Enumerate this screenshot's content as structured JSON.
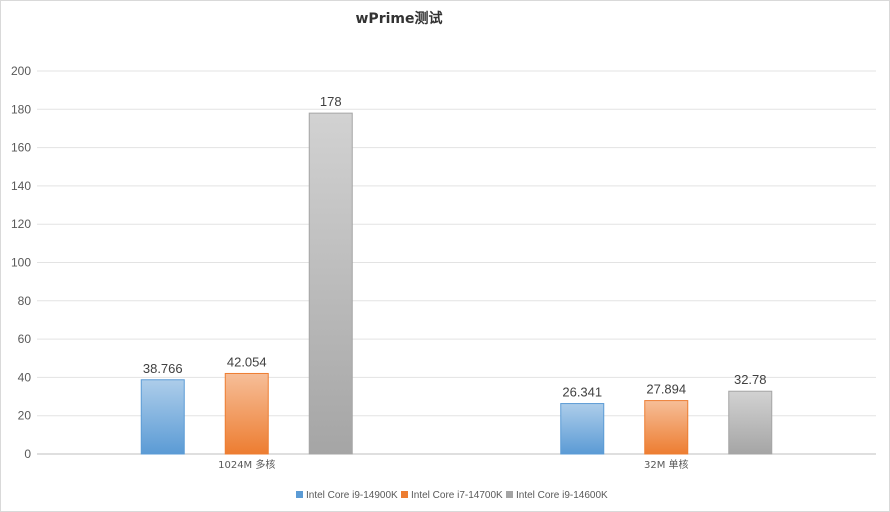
{
  "chart_data": {
    "type": "bar",
    "title": "wPrime测试",
    "xlabel": "",
    "ylabel": "",
    "categories": [
      "1024M 多核",
      "32M 单核"
    ],
    "series": [
      {
        "name": "Intel Core i9-14900K",
        "values": [
          38.766,
          26.341
        ],
        "labels": [
          "38.766",
          "26.341"
        ],
        "color": "#5b9bd5"
      },
      {
        "name": "Intel Core i7-14700K",
        "values": [
          42.054,
          27.894
        ],
        "labels": [
          "42.054",
          "27.894"
        ],
        "color": "#ed7d31"
      },
      {
        "name": "Intel Core i9-14600K",
        "values": [
          178,
          32.78
        ],
        "labels": [
          "178",
          "32.78"
        ],
        "color": "#a5a5a5"
      }
    ],
    "ylim": [
      0,
      200
    ],
    "yticks": [
      "0",
      "20",
      "40",
      "60",
      "80",
      "100",
      "120",
      "140",
      "160",
      "180",
      "200"
    ],
    "grid": true,
    "legend_position": "bottom"
  }
}
